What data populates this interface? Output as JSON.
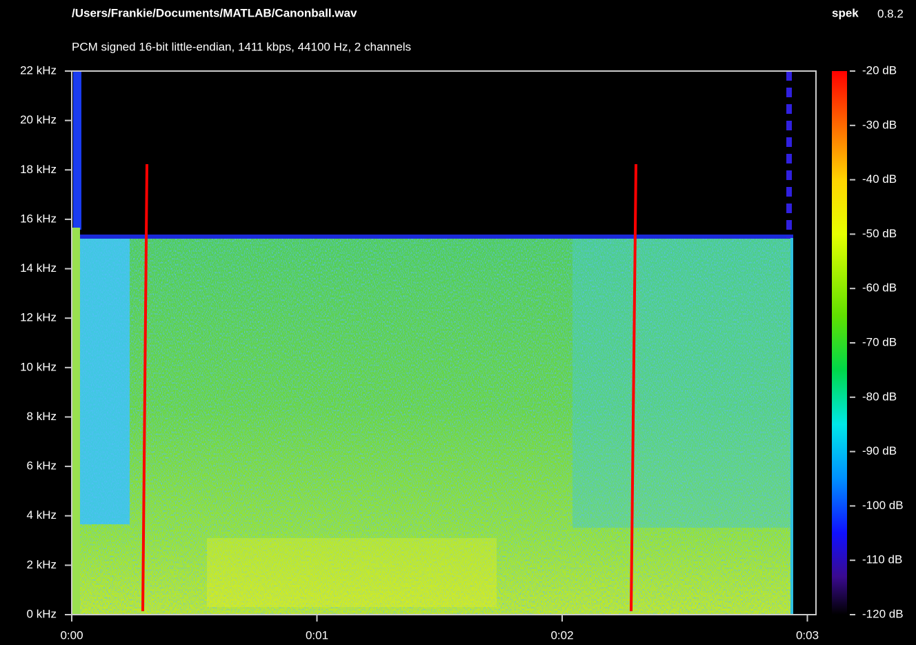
{
  "header": {
    "title": "/Users/Frankie/Documents/MATLAB/Canonball.wav",
    "app_name": "spek",
    "app_version": "0.8.2",
    "subtitle": "PCM signed 16-bit little-endian, 1411 kbps, 44100 Hz, 2 channels"
  },
  "y_axis": {
    "labels": [
      "0 kHz",
      "2 kHz",
      "4 kHz",
      "6 kHz",
      "8 kHz",
      "10 kHz",
      "12 kHz",
      "14 kHz",
      "16 kHz",
      "18 kHz",
      "20 kHz",
      "22 kHz"
    ]
  },
  "x_axis": {
    "labels": [
      "0:00",
      "0:01",
      "0:02",
      "0:03"
    ]
  },
  "color_scale": {
    "labels": [
      "-20 dB",
      "-30 dB",
      "-40 dB",
      "-50 dB",
      "-60 dB",
      "-70 dB",
      "-80 dB",
      "-90 dB",
      "-100 dB",
      "-110 dB",
      "-120 dB"
    ]
  }
}
